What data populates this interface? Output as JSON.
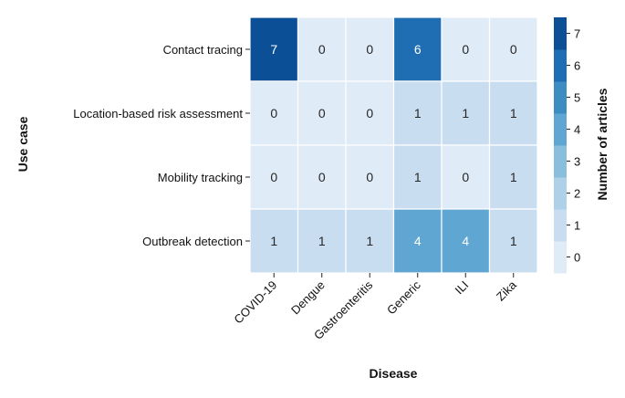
{
  "chart_data": {
    "type": "heatmap",
    "title": "",
    "xlabel": "Disease",
    "ylabel": "Use case",
    "x_categories": [
      "COVID-19",
      "Dengue",
      "Gastroenteritis",
      "Generic",
      "ILI",
      "Zika"
    ],
    "y_categories": [
      "Contact tracing",
      "Location-based risk assessment",
      "Mobility tracking",
      "Outbreak detection"
    ],
    "values": [
      [
        7,
        0,
        0,
        6,
        0,
        0
      ],
      [
        0,
        0,
        0,
        1,
        1,
        1
      ],
      [
        0,
        0,
        0,
        1,
        0,
        1
      ],
      [
        1,
        1,
        1,
        4,
        4,
        1
      ]
    ],
    "colorbar": {
      "label": "Number of articles",
      "range": [
        -0.5,
        7.5
      ],
      "ticks": [
        0,
        1,
        2,
        3,
        4,
        5,
        6,
        7
      ],
      "colors": [
        "#dfebf7",
        "#c9ddf0",
        "#afd1e7",
        "#89bedc",
        "#60a6d2",
        "#3d8dc3",
        "#1f6eb3",
        "#0b4f96"
      ]
    }
  }
}
